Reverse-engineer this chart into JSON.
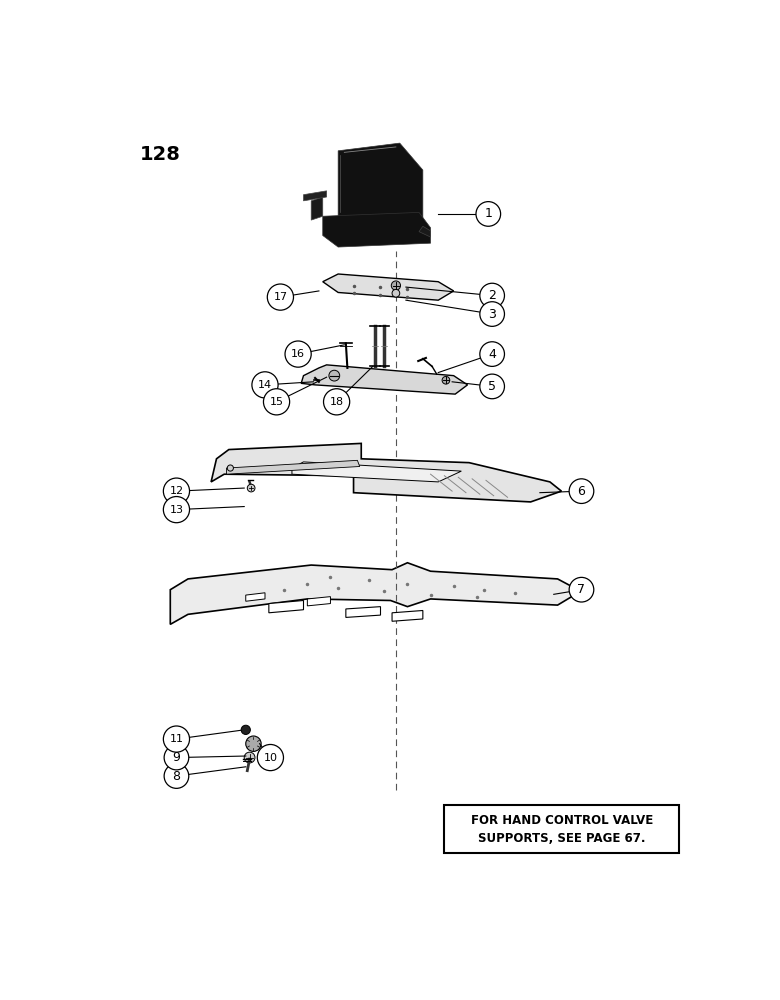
{
  "page_number": "128",
  "note_text": "FOR HAND CONTROL VALVE\nSUPPORTS, SEE PAGE 67.",
  "background_color": "#ffffff",
  "line_color": "#000000"
}
